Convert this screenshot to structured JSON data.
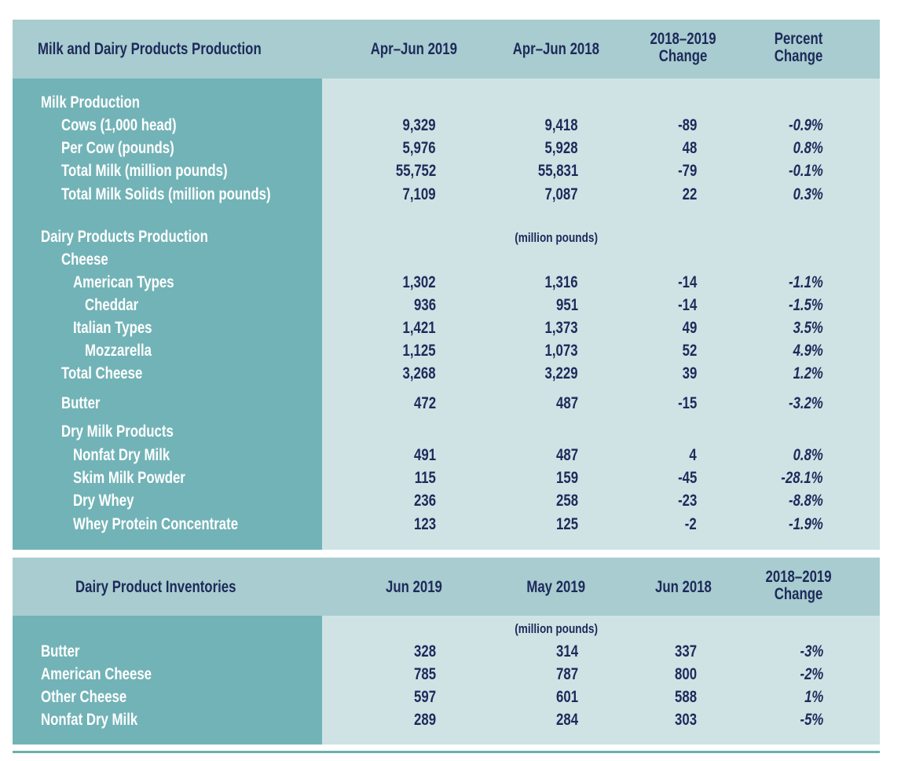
{
  "production": {
    "header": {
      "title": "Milk and Dairy Products Production",
      "col1": "Apr–Jun 2019",
      "col2": "Apr–Jun 2018",
      "col3_line1": "2018–2019",
      "col3_line2": "Change",
      "col4_line1": "Percent",
      "col4_line2": "Change"
    },
    "unit_note": "(million pounds)",
    "rows": [
      {
        "label": "Milk Production",
        "level": 0,
        "values": [
          "",
          "",
          "",
          ""
        ]
      },
      {
        "label": "Cows (1,000 head)",
        "level": 1,
        "values": [
          "9,329",
          "9,418",
          "-89",
          "-0.9%"
        ]
      },
      {
        "label": "Per Cow (pounds)",
        "level": 1,
        "values": [
          "5,976",
          "5,928",
          "48",
          "0.8%"
        ]
      },
      {
        "label": "Total Milk (million pounds)",
        "level": 1,
        "values": [
          "55,752",
          "55,831",
          "-79",
          "-0.1%"
        ]
      },
      {
        "label": "Total Milk Solids (million pounds)",
        "level": 1,
        "values": [
          "7,109",
          "7,087",
          "22",
          "0.3%"
        ]
      },
      {
        "label": "Dairy Products Production",
        "level": 0,
        "values": [
          "",
          "",
          "",
          ""
        ]
      },
      {
        "label": "Cheese",
        "level": 1,
        "values": [
          "",
          "",
          "",
          ""
        ]
      },
      {
        "label": "American Types",
        "level": 2,
        "values": [
          "1,302",
          "1,316",
          "-14",
          "-1.1%"
        ]
      },
      {
        "label": "Cheddar",
        "level": 3,
        "values": [
          "936",
          "951",
          "-14",
          "-1.5%"
        ]
      },
      {
        "label": "Italian Types",
        "level": 2,
        "values": [
          "1,421",
          "1,373",
          "49",
          "3.5%"
        ]
      },
      {
        "label": "Mozzarella",
        "level": 3,
        "values": [
          "1,125",
          "1,073",
          "52",
          "4.9%"
        ]
      },
      {
        "label": "Total Cheese",
        "level": 1,
        "values": [
          "3,268",
          "3,229",
          "39",
          "1.2%"
        ]
      },
      {
        "label": "Butter",
        "level": 1,
        "values": [
          "472",
          "487",
          "-15",
          "-3.2%"
        ]
      },
      {
        "label": "Dry Milk Products",
        "level": 1,
        "values": [
          "",
          "",
          "",
          ""
        ]
      },
      {
        "label": "Nonfat Dry Milk",
        "level": 2,
        "values": [
          "491",
          "487",
          "4",
          "0.8%"
        ]
      },
      {
        "label": "Skim Milk Powder",
        "level": 2,
        "values": [
          "115",
          "159",
          "-45",
          "-28.1%"
        ]
      },
      {
        "label": "Dry Whey",
        "level": 2,
        "values": [
          "236",
          "258",
          "-23",
          "-8.8%"
        ]
      },
      {
        "label": "Whey Protein Concentrate",
        "level": 2,
        "values": [
          "123",
          "125",
          "-2",
          "-1.9%"
        ]
      }
    ]
  },
  "inventories": {
    "header": {
      "title": "Dairy Product Inventories",
      "col1": "Jun 2019",
      "col2": "May 2019",
      "col3": "Jun 2018",
      "col4_line1": "2018–2019",
      "col4_line2": "Change"
    },
    "unit_note": "(million pounds)",
    "rows": [
      {
        "label": "Butter",
        "level": 0,
        "values": [
          "328",
          "314",
          "337",
          "-3%"
        ]
      },
      {
        "label": "American Cheese",
        "level": 0,
        "values": [
          "785",
          "787",
          "800",
          "-2%"
        ]
      },
      {
        "label": "Other Cheese",
        "level": 0,
        "values": [
          "597",
          "601",
          "588",
          "1%"
        ]
      },
      {
        "label": "Nonfat Dry Milk",
        "level": 0,
        "values": [
          "289",
          "284",
          "303",
          "-5%"
        ]
      }
    ]
  },
  "colors": {
    "header_bg": "#a8cccf",
    "label_column_bg": "#72b3b7",
    "body_bg": "#cfe3e5",
    "text_dark": "#1d2a5a",
    "rule": "#6ab0ad"
  }
}
